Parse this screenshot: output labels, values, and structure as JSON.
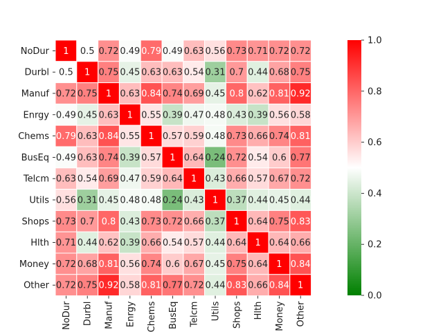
{
  "chart_data": {
    "type": "heatmap",
    "title": "",
    "xlabel": "",
    "ylabel": "",
    "rows": [
      "NoDur",
      "Durbl",
      "Manuf",
      "Enrgy",
      "Chems",
      "BusEq",
      "Telcm",
      "Utils",
      "Shops",
      "Hlth",
      "Money",
      "Other"
    ],
    "cols": [
      "NoDur",
      "Durbl",
      "Manuf",
      "Enrgy",
      "Chems",
      "BusEq",
      "Telcm",
      "Utils",
      "Shops",
      "Hlth",
      "Money",
      "Other"
    ],
    "values": [
      [
        1,
        0.5,
        0.72,
        0.49,
        0.79,
        0.49,
        0.63,
        0.56,
        0.73,
        0.71,
        0.72,
        0.72
      ],
      [
        0.5,
        1,
        0.75,
        0.45,
        0.63,
        0.63,
        0.54,
        0.31,
        0.7,
        0.44,
        0.68,
        0.75
      ],
      [
        0.72,
        0.75,
        1,
        0.63,
        0.84,
        0.74,
        0.69,
        0.45,
        0.8,
        0.62,
        0.81,
        0.92
      ],
      [
        0.49,
        0.45,
        0.63,
        1,
        0.55,
        0.39,
        0.47,
        0.48,
        0.43,
        0.39,
        0.56,
        0.58
      ],
      [
        0.79,
        0.63,
        0.84,
        0.55,
        1,
        0.57,
        0.59,
        0.48,
        0.73,
        0.66,
        0.74,
        0.81
      ],
      [
        0.49,
        0.63,
        0.74,
        0.39,
        0.57,
        1,
        0.64,
        0.24,
        0.72,
        0.54,
        0.6,
        0.77
      ],
      [
        0.63,
        0.54,
        0.69,
        0.47,
        0.59,
        0.64,
        1,
        0.43,
        0.66,
        0.57,
        0.67,
        0.72
      ],
      [
        0.56,
        0.31,
        0.45,
        0.48,
        0.48,
        0.24,
        0.43,
        1,
        0.37,
        0.44,
        0.45,
        0.44
      ],
      [
        0.73,
        0.7,
        0.8,
        0.43,
        0.73,
        0.72,
        0.66,
        0.37,
        1,
        0.64,
        0.75,
        0.83
      ],
      [
        0.71,
        0.44,
        0.62,
        0.39,
        0.66,
        0.54,
        0.57,
        0.44,
        0.64,
        1,
        0.64,
        0.66
      ],
      [
        0.72,
        0.68,
        0.81,
        0.56,
        0.74,
        0.6,
        0.67,
        0.45,
        0.75,
        0.64,
        1,
        0.84
      ],
      [
        0.72,
        0.75,
        0.92,
        0.58,
        0.81,
        0.77,
        0.72,
        0.44,
        0.83,
        0.66,
        0.84,
        1
      ]
    ],
    "colorscale": {
      "min": 0.0,
      "mid": 0.5,
      "max": 1.0,
      "low_color": "#008000",
      "mid_color": "#ffffff",
      "high_color": "#ff0000"
    },
    "colorbar_ticks": [
      "0.0",
      "0.2",
      "0.4",
      "0.6",
      "0.8",
      "1.0"
    ],
    "colorbar_tick_values": [
      0.0,
      0.2,
      0.4,
      0.6,
      0.8,
      1.0
    ],
    "grid": true
  }
}
